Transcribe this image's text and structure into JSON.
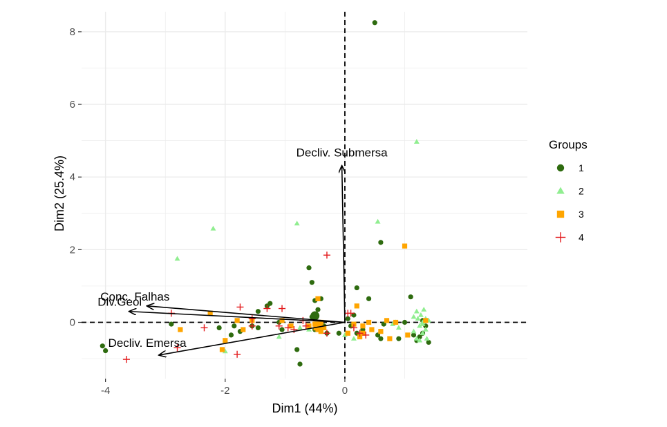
{
  "chart_data": {
    "type": "scatter",
    "subtype": "pca-biplot",
    "title": "",
    "xlabel": "Dim1 (44%)",
    "ylabel": "Dim2 (25.4%)",
    "xlim": [
      -4.4,
      3.05
    ],
    "ylim": [
      -1.55,
      8.55
    ],
    "xticks": [
      -4,
      -2,
      0
    ],
    "yticks": [
      0,
      2,
      4,
      6,
      8
    ],
    "grid": true,
    "background": "#ffffff",
    "grid_color": "#ebebeb",
    "zero_lines": "dashed",
    "legend": {
      "title": "Groups",
      "position": "right",
      "entries": [
        {
          "label": "1",
          "shape": "circle",
          "color": "#2e6b0f"
        },
        {
          "label": "2",
          "shape": "triangle",
          "color": "#90ee90"
        },
        {
          "label": "3",
          "shape": "square",
          "color": "#ffa500"
        },
        {
          "label": "4",
          "shape": "plus",
          "color": "#e31a1c"
        }
      ]
    },
    "vectors": [
      {
        "label": "Decliv. Submersa",
        "x": -0.05,
        "y": 4.3
      },
      {
        "label": "Conc. Falhas",
        "x": -3.3,
        "y": 0.45
      },
      {
        "label": "Div.Geol",
        "x": -3.6,
        "y": 0.3
      },
      {
        "label": "Decliv. Emersa",
        "x": -3.1,
        "y": -0.9
      }
    ],
    "centroids": [
      {
        "group": "1",
        "x": -0.5,
        "y": 0.18
      },
      {
        "group": "3",
        "x": -0.45,
        "y": -0.1
      }
    ],
    "series": [
      {
        "name": "1",
        "points": [
          [
            0.5,
            8.25
          ],
          [
            -4.05,
            -0.65
          ],
          [
            -4.0,
            -0.78
          ],
          [
            -2.9,
            -0.05
          ],
          [
            -2.1,
            -0.15
          ],
          [
            -1.9,
            -0.35
          ],
          [
            -1.85,
            -0.1
          ],
          [
            -1.75,
            -0.25
          ],
          [
            -1.55,
            -0.1
          ],
          [
            -1.45,
            0.3
          ],
          [
            -1.45,
            -0.15
          ],
          [
            -1.3,
            0.45
          ],
          [
            -1.25,
            0.52
          ],
          [
            -1.1,
            0.0
          ],
          [
            -1.05,
            -0.2
          ],
          [
            -0.8,
            -0.75
          ],
          [
            -0.75,
            -1.15
          ],
          [
            -0.6,
            1.5
          ],
          [
            -0.55,
            1.1
          ],
          [
            -0.5,
            0.6
          ],
          [
            -0.45,
            0.35
          ],
          [
            -0.4,
            0.65
          ],
          [
            -0.35,
            -0.1
          ],
          [
            -0.3,
            -0.3
          ],
          [
            -0.5,
            -0.2
          ],
          [
            -0.55,
            0.15
          ],
          [
            0.05,
            0.1
          ],
          [
            0.15,
            0.2
          ],
          [
            0.2,
            0.95
          ],
          [
            0.4,
            0.65
          ],
          [
            0.55,
            -0.35
          ],
          [
            0.6,
            -0.45
          ],
          [
            0.6,
            2.2
          ],
          [
            0.65,
            -0.05
          ],
          [
            0.9,
            -0.45
          ],
          [
            1.0,
            0.0
          ],
          [
            1.1,
            0.7
          ],
          [
            1.15,
            -0.35
          ],
          [
            1.2,
            -0.5
          ],
          [
            1.25,
            -0.4
          ],
          [
            1.3,
            -0.3
          ],
          [
            1.35,
            -0.1
          ],
          [
            1.4,
            -0.55
          ],
          [
            1.3,
            0.05
          ],
          [
            0.2,
            -0.3
          ],
          [
            0.3,
            -0.2
          ],
          [
            -0.1,
            -0.3
          ],
          [
            0.1,
            -0.1
          ]
        ]
      },
      {
        "name": "2",
        "points": [
          [
            1.2,
            4.97
          ],
          [
            -2.2,
            2.58
          ],
          [
            -2.8,
            1.75
          ],
          [
            -0.8,
            2.72
          ],
          [
            0.55,
            2.77
          ],
          [
            -1.1,
            -0.4
          ],
          [
            -0.75,
            -0.15
          ],
          [
            -2.0,
            -0.8
          ],
          [
            0.15,
            -0.45
          ],
          [
            0.8,
            -0.05
          ],
          [
            0.85,
            0.0
          ],
          [
            0.9,
            -0.15
          ],
          [
            1.15,
            -0.25
          ],
          [
            1.2,
            0.3
          ],
          [
            1.22,
            0.1
          ],
          [
            1.25,
            -0.1
          ],
          [
            1.27,
            0.2
          ],
          [
            1.3,
            -0.3
          ],
          [
            1.3,
            0.0
          ],
          [
            1.32,
            0.35
          ],
          [
            1.35,
            -0.2
          ],
          [
            1.35,
            0.1
          ],
          [
            1.37,
            -0.45
          ],
          [
            1.4,
            0.05
          ],
          [
            1.2,
            -0.45
          ],
          [
            1.15,
            0.15
          ],
          [
            1.25,
            -0.5
          ],
          [
            1.3,
            -0.05
          ],
          [
            0.0,
            -0.35
          ],
          [
            -0.6,
            -0.2
          ]
        ]
      },
      {
        "name": "3",
        "points": [
          [
            1.0,
            2.1
          ],
          [
            -2.75,
            -0.2
          ],
          [
            -2.25,
            0.25
          ],
          [
            -2.0,
            -0.5
          ],
          [
            -2.05,
            -0.75
          ],
          [
            -1.8,
            0.05
          ],
          [
            -1.7,
            -0.2
          ],
          [
            -1.55,
            0.05
          ],
          [
            -1.05,
            0.05
          ],
          [
            -0.9,
            -0.1
          ],
          [
            -0.45,
            0.65
          ],
          [
            -0.5,
            -0.05
          ],
          [
            -0.45,
            -0.2
          ],
          [
            -0.4,
            0.0
          ],
          [
            -0.35,
            -0.15
          ],
          [
            -0.4,
            -0.25
          ],
          [
            0.05,
            -0.3
          ],
          [
            0.15,
            -0.05
          ],
          [
            0.2,
            0.45
          ],
          [
            0.25,
            -0.4
          ],
          [
            0.3,
            -0.3
          ],
          [
            0.4,
            0.0
          ],
          [
            0.45,
            -0.2
          ],
          [
            0.6,
            -0.25
          ],
          [
            0.7,
            0.05
          ],
          [
            0.75,
            -0.45
          ],
          [
            1.05,
            -0.35
          ],
          [
            1.35,
            0.05
          ],
          [
            0.85,
            0.0
          ],
          [
            0.3,
            -0.1
          ],
          [
            -0.6,
            -0.1
          ]
        ]
      },
      {
        "name": "4",
        "points": [
          [
            -3.65,
            -1.02
          ],
          [
            -2.8,
            -0.7
          ],
          [
            -2.9,
            0.25
          ],
          [
            -2.35,
            -0.15
          ],
          [
            -1.75,
            0.42
          ],
          [
            -1.8,
            -0.88
          ],
          [
            -1.55,
            -0.1
          ],
          [
            -1.55,
            0.1
          ],
          [
            -1.3,
            0.38
          ],
          [
            -1.1,
            -0.1
          ],
          [
            -1.05,
            0.38
          ],
          [
            -0.95,
            -0.15
          ],
          [
            -0.7,
            0.05
          ],
          [
            -0.65,
            -0.1
          ],
          [
            -0.3,
            1.85
          ],
          [
            -0.3,
            -0.3
          ],
          [
            0.05,
            0.25
          ],
          [
            0.1,
            0.25
          ],
          [
            0.15,
            -0.15
          ],
          [
            0.25,
            -0.3
          ],
          [
            0.35,
            -0.35
          ],
          [
            -0.85,
            -0.2
          ]
        ]
      }
    ]
  }
}
